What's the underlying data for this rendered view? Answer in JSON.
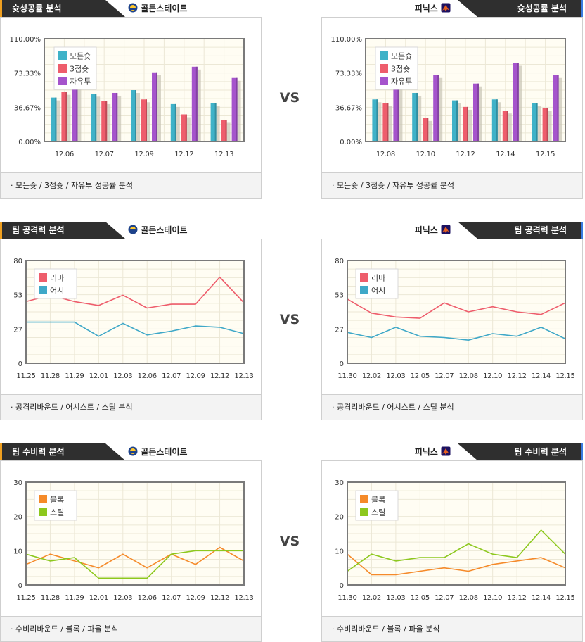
{
  "vs_label": "VS",
  "teams": {
    "left": "골든스테이트",
    "right": "피닉스"
  },
  "sections": [
    {
      "title": "슛성공률 분석",
      "footer": "· 모든슛 / 3점슛 / 자유투 성공률 분석"
    },
    {
      "title": "팀 공격력 분석",
      "footer": "· 공격리바운드 / 어시스트 / 스틸 분석"
    },
    {
      "title": "팀 수비력 분석",
      "footer": "· 수비리바운드 / 블록 / 파울 분석"
    }
  ],
  "chart_data": [
    {
      "id": "gsw-shooting",
      "type": "bar",
      "categories": [
        "12.06",
        "12.07",
        "12.09",
        "12.12",
        "12.13"
      ],
      "yticks": [
        "0.00%",
        "36.67%",
        "73.33%",
        "110.00%"
      ],
      "ylim": [
        0,
        110
      ],
      "series": [
        {
          "name": "모든슛",
          "color": "#3fb2c8",
          "values": [
            47,
            51,
            55,
            40,
            41
          ]
        },
        {
          "name": "3점슛",
          "color": "#ee5d6c",
          "values": [
            53,
            43,
            45,
            29,
            23
          ]
        },
        {
          "name": "자유투",
          "color": "#a554cc",
          "values": [
            63,
            52,
            74,
            80,
            68
          ]
        }
      ]
    },
    {
      "id": "phx-shooting",
      "type": "bar",
      "categories": [
        "12.08",
        "12.10",
        "12.12",
        "12.14",
        "12.15"
      ],
      "yticks": [
        "0.00%",
        "36.67%",
        "73.33%",
        "110.00%"
      ],
      "ylim": [
        0,
        110
      ],
      "series": [
        {
          "name": "모든슛",
          "color": "#3fb2c8",
          "values": [
            45,
            52,
            44,
            45,
            41
          ]
        },
        {
          "name": "3점슛",
          "color": "#ee5d6c",
          "values": [
            41,
            25,
            37,
            33,
            36
          ]
        },
        {
          "name": "자유투",
          "color": "#a554cc",
          "values": [
            63,
            71,
            62,
            84,
            71
          ]
        }
      ]
    },
    {
      "id": "gsw-offense",
      "type": "line",
      "categories": [
        "11.25",
        "11.28",
        "11.29",
        "12.01",
        "12.03",
        "12.06",
        "12.07",
        "12.09",
        "12.12",
        "12.13"
      ],
      "yticks": [
        "0",
        "27",
        "53",
        "80"
      ],
      "ylim": [
        0,
        80
      ],
      "series": [
        {
          "name": "리바",
          "color": "#ee5d6c",
          "values": [
            48,
            53,
            48,
            45,
            53,
            43,
            46,
            46,
            67,
            47
          ]
        },
        {
          "name": "어시",
          "color": "#3fa8c8",
          "values": [
            32,
            32,
            32,
            21,
            31,
            22,
            25,
            29,
            28,
            23
          ]
        }
      ]
    },
    {
      "id": "phx-offense",
      "type": "line",
      "categories": [
        "11.30",
        "12.02",
        "12.03",
        "12.05",
        "12.07",
        "12.08",
        "12.10",
        "12.12",
        "12.14",
        "12.15"
      ],
      "yticks": [
        "0",
        "27",
        "53",
        "80"
      ],
      "ylim": [
        0,
        80
      ],
      "series": [
        {
          "name": "리바",
          "color": "#ee5d6c",
          "values": [
            50,
            39,
            36,
            35,
            47,
            40,
            44,
            40,
            38,
            47
          ]
        },
        {
          "name": "어시",
          "color": "#3fa8c8",
          "values": [
            24,
            20,
            28,
            21,
            20,
            18,
            23,
            21,
            28,
            19
          ]
        }
      ]
    },
    {
      "id": "gsw-defense",
      "type": "line",
      "categories": [
        "11.25",
        "11.28",
        "11.29",
        "12.01",
        "12.03",
        "12.06",
        "12.07",
        "12.09",
        "12.12",
        "12.13"
      ],
      "yticks": [
        "0",
        "10",
        "20",
        "30"
      ],
      "ylim": [
        0,
        30
      ],
      "series": [
        {
          "name": "블록",
          "color": "#f58a2a",
          "values": [
            6,
            9,
            7,
            5,
            9,
            5,
            9,
            6,
            11,
            7
          ]
        },
        {
          "name": "스틸",
          "color": "#8dc81e",
          "values": [
            9,
            7,
            8,
            2,
            2,
            2,
            9,
            10,
            10,
            10
          ]
        }
      ]
    },
    {
      "id": "phx-defense",
      "type": "line",
      "categories": [
        "11.30",
        "12.02",
        "12.03",
        "12.05",
        "12.07",
        "12.08",
        "12.10",
        "12.12",
        "12.14",
        "12.15"
      ],
      "yticks": [
        "0",
        "10",
        "20",
        "30"
      ],
      "ylim": [
        0,
        30
      ],
      "series": [
        {
          "name": "블록",
          "color": "#f58a2a",
          "values": [
            9,
            3,
            3,
            4,
            5,
            4,
            6,
            7,
            8,
            5
          ]
        },
        {
          "name": "스틸",
          "color": "#8dc81e",
          "values": [
            4,
            9,
            7,
            8,
            8,
            12,
            9,
            8,
            16,
            9
          ]
        }
      ]
    }
  ]
}
